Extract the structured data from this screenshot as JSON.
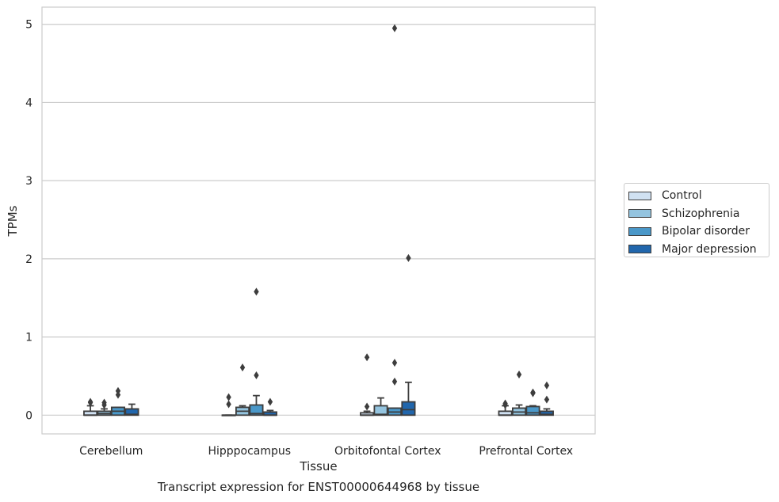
{
  "caption": "Transcript expression for ENST00000644968 by tissue",
  "chart_data": {
    "type": "boxplot",
    "title": "",
    "xlabel": "Tissue",
    "ylabel": "TPMs",
    "ylim": [
      -0.24,
      5.22
    ],
    "yticks": [
      0,
      1,
      2,
      3,
      4,
      5
    ],
    "grid": true,
    "legend_position": "center-right outside",
    "categories": [
      "Cerebellum",
      "Hipppocampus",
      "Orbitofontal Cortex",
      "Prefrontal Cortex"
    ],
    "series": [
      {
        "name": "Control",
        "color": "#d0e1f2",
        "boxes": [
          {
            "min": 0,
            "q1": 0,
            "median": 0.0,
            "q3": 0.05,
            "max": 0.12,
            "outliers": [
              0.17,
              0.16
            ]
          },
          {
            "min": 0,
            "q1": 0,
            "median": 0.0,
            "q3": 0.0,
            "max": 0.0,
            "outliers": [
              0.23,
              0.14
            ]
          },
          {
            "min": 0,
            "q1": 0,
            "median": 0.0,
            "q3": 0.03,
            "max": 0.05,
            "outliers": [
              0.74,
              0.11
            ]
          },
          {
            "min": 0,
            "q1": 0,
            "median": 0.0,
            "q3": 0.05,
            "max": 0.12,
            "outliers": [
              0.15,
              0.13
            ]
          }
        ]
      },
      {
        "name": "Schizophrenia",
        "color": "#94c4df",
        "boxes": [
          {
            "min": 0,
            "q1": 0,
            "median": 0.02,
            "q3": 0.05,
            "max": 0.08,
            "outliers": [
              0.16,
              0.13
            ]
          },
          {
            "min": 0,
            "q1": 0,
            "median": 0.05,
            "q3": 0.1,
            "max": 0.12,
            "outliers": [
              0.61
            ]
          },
          {
            "min": 0,
            "q1": 0,
            "median": 0.01,
            "q3": 0.12,
            "max": 0.22,
            "outliers": []
          },
          {
            "min": 0,
            "q1": 0,
            "median": 0.04,
            "q3": 0.09,
            "max": 0.13,
            "outliers": [
              0.52
            ]
          }
        ]
      },
      {
        "name": "Bipolar disorder",
        "color": "#4a98c9",
        "boxes": [
          {
            "min": 0,
            "q1": 0,
            "median": 0.05,
            "q3": 0.1,
            "max": 0.1,
            "outliers": [
              0.31,
              0.26
            ]
          },
          {
            "min": 0,
            "q1": 0,
            "median": 0.02,
            "q3": 0.13,
            "max": 0.25,
            "outliers": [
              1.58,
              0.51
            ]
          },
          {
            "min": 0,
            "q1": 0,
            "median": 0.04,
            "q3": 0.09,
            "max": 0.09,
            "outliers": [
              4.95,
              0.67,
              0.43
            ]
          },
          {
            "min": 0,
            "q1": 0,
            "median": 0.03,
            "q3": 0.11,
            "max": 0.12,
            "outliers": [
              0.29,
              0.28
            ]
          }
        ]
      },
      {
        "name": "Major depression",
        "color": "#2166ac",
        "boxes": [
          {
            "min": 0,
            "q1": 0,
            "median": 0.01,
            "q3": 0.08,
            "max": 0.14,
            "outliers": []
          },
          {
            "min": 0,
            "q1": 0,
            "median": 0.0,
            "q3": 0.04,
            "max": 0.06,
            "outliers": [
              0.17
            ]
          },
          {
            "min": 0,
            "q1": 0,
            "median": 0.07,
            "q3": 0.17,
            "max": 0.42,
            "outliers": [
              2.01
            ]
          },
          {
            "min": 0,
            "q1": 0,
            "median": 0.01,
            "q3": 0.05,
            "max": 0.08,
            "outliers": [
              0.38,
              0.2
            ]
          }
        ]
      }
    ]
  }
}
